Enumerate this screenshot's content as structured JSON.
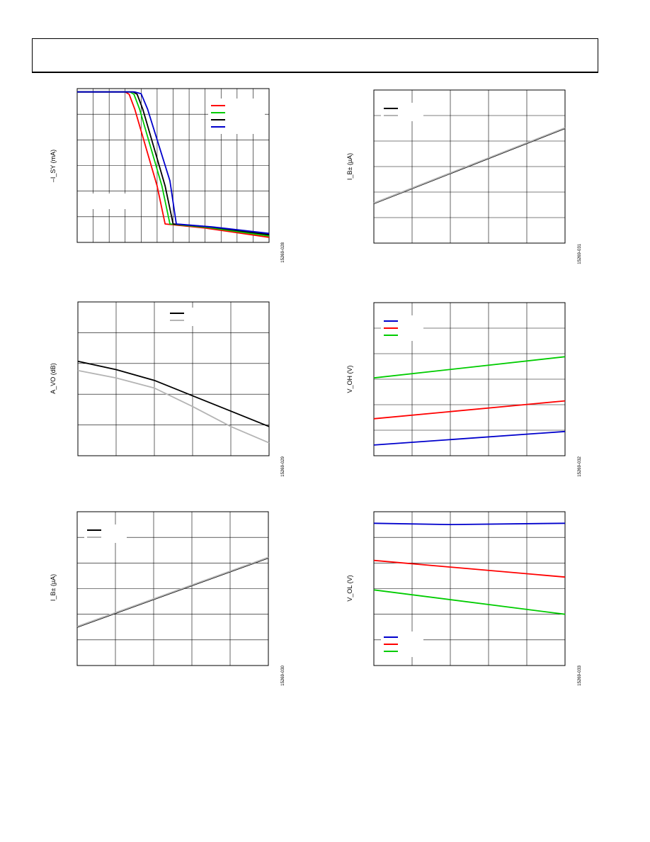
{
  "chart_data": [
    {
      "id": "c1",
      "type": "line",
      "ylabel": "–I_SY (mA)",
      "fig_id": "15269-028",
      "grid": true,
      "xlim": [
        0,
        12
      ],
      "ylim": [
        0,
        6
      ],
      "x_divisions": 12,
      "y_divisions": 6,
      "legend": {
        "placement": "top-right",
        "box": true
      },
      "series": [
        {
          "color": "#ff0000",
          "points": [
            [
              0,
              5.87
            ],
            [
              3.0,
              5.87
            ],
            [
              3.25,
              5.78
            ],
            [
              3.6,
              5.2
            ],
            [
              5.0,
              2.2
            ],
            [
              5.5,
              0.72
            ],
            [
              8,
              0.56
            ],
            [
              12,
              0.2
            ]
          ]
        },
        {
          "color": "#00cc00",
          "points": [
            [
              0,
              5.87
            ],
            [
              3.3,
              5.87
            ],
            [
              3.55,
              5.78
            ],
            [
              3.9,
              5.2
            ],
            [
              5.3,
              2.2
            ],
            [
              5.8,
              0.72
            ],
            [
              8.2,
              0.58
            ],
            [
              12,
              0.25
            ]
          ]
        },
        {
          "color": "#000000",
          "points": [
            [
              0,
              5.87
            ],
            [
              3.5,
              5.87
            ],
            [
              3.75,
              5.78
            ],
            [
              4.1,
              5.2
            ],
            [
              5.5,
              2.2
            ],
            [
              6.0,
              0.72
            ],
            [
              8.4,
              0.6
            ],
            [
              12,
              0.3
            ]
          ]
        },
        {
          "color": "#0000cc",
          "points": [
            [
              0,
              5.87
            ],
            [
              3.6,
              5.87
            ],
            [
              4.0,
              5.8
            ],
            [
              4.4,
              5.2
            ],
            [
              5.8,
              2.4
            ],
            [
              6.2,
              0.72
            ],
            [
              8.5,
              0.6
            ],
            [
              12,
              0.35
            ]
          ]
        }
      ]
    },
    {
      "id": "c2",
      "type": "line",
      "ylabel": "I_B± (µA)",
      "fig_id": "15269-031",
      "grid": true,
      "xlim": [
        0,
        5
      ],
      "ylim": [
        0,
        6
      ],
      "x_divisions": 5,
      "y_divisions": 6,
      "legend": {
        "placement": "top-left",
        "box": false
      },
      "series": [
        {
          "color": "#000000",
          "points": [
            [
              0,
              1.55
            ],
            [
              5,
              4.5
            ]
          ]
        },
        {
          "color": "#b4b4b4",
          "points": [
            [
              0,
              1.57
            ],
            [
              5,
              4.52
            ]
          ]
        }
      ]
    },
    {
      "id": "c3",
      "type": "line",
      "ylabel": "A_VO (dB)",
      "fig_id": "15269-029",
      "grid": true,
      "xlim": [
        0,
        5
      ],
      "ylim": [
        0,
        5
      ],
      "x_divisions": 5,
      "y_divisions": 5,
      "legend": {
        "placement": "top-center",
        "box": false
      },
      "series": [
        {
          "color": "#000000",
          "points": [
            [
              0,
              3.07
            ],
            [
              1,
              2.8
            ],
            [
              2,
              2.45
            ],
            [
              3,
              1.95
            ],
            [
              4,
              1.45
            ],
            [
              5,
              0.95
            ]
          ]
        },
        {
          "color": "#b4b4b4",
          "points": [
            [
              0,
              2.77
            ],
            [
              1,
              2.53
            ],
            [
              2,
              2.2
            ],
            [
              3,
              1.6
            ],
            [
              4,
              0.95
            ],
            [
              5,
              0.42
            ]
          ]
        }
      ]
    },
    {
      "id": "c4",
      "type": "line",
      "ylabel": "V_OH (V)",
      "fig_id": "15269-032",
      "grid": true,
      "xlim": [
        0,
        5
      ],
      "ylim": [
        0,
        6
      ],
      "x_divisions": 5,
      "y_divisions": 6,
      "legend": {
        "placement": "top-left",
        "box": false
      },
      "series": [
        {
          "color": "#0000cc",
          "points": [
            [
              0,
              0.42
            ],
            [
              5,
              0.95
            ]
          ]
        },
        {
          "color": "#ff0000",
          "points": [
            [
              0,
              1.45
            ],
            [
              5,
              2.15
            ]
          ]
        },
        {
          "color": "#00cc00",
          "points": [
            [
              0,
              3.05
            ],
            [
              5,
              3.88
            ]
          ]
        }
      ]
    },
    {
      "id": "c5",
      "type": "line",
      "ylabel": "I_B± (µA)",
      "fig_id": "15269-030",
      "grid": true,
      "xlim": [
        0,
        5
      ],
      "ylim": [
        0,
        6
      ],
      "x_divisions": 5,
      "y_divisions": 6,
      "legend": {
        "placement": "top-left",
        "box": false
      },
      "series": [
        {
          "color": "#000000",
          "points": [
            [
              0,
              1.5
            ],
            [
              5,
              4.2
            ]
          ]
        },
        {
          "color": "#b4b4b4",
          "points": [
            [
              0,
              1.52
            ],
            [
              5,
              4.22
            ]
          ]
        }
      ]
    },
    {
      "id": "c6",
      "type": "line",
      "ylabel": "V_OL (V)",
      "fig_id": "15269-033",
      "grid": true,
      "xlim": [
        0,
        5
      ],
      "ylim": [
        0,
        6
      ],
      "x_divisions": 5,
      "y_divisions": 6,
      "legend": {
        "placement": "bottom-left",
        "box": false
      },
      "series": [
        {
          "color": "#0000cc",
          "points": [
            [
              0,
              5.55
            ],
            [
              2,
              5.5
            ],
            [
              5,
              5.55
            ]
          ]
        },
        {
          "color": "#ff0000",
          "points": [
            [
              0,
              4.1
            ],
            [
              5,
              3.45
            ]
          ]
        },
        {
          "color": "#00cc00",
          "points": [
            [
              0,
              2.95
            ],
            [
              5,
              2.0
            ]
          ]
        }
      ]
    }
  ]
}
